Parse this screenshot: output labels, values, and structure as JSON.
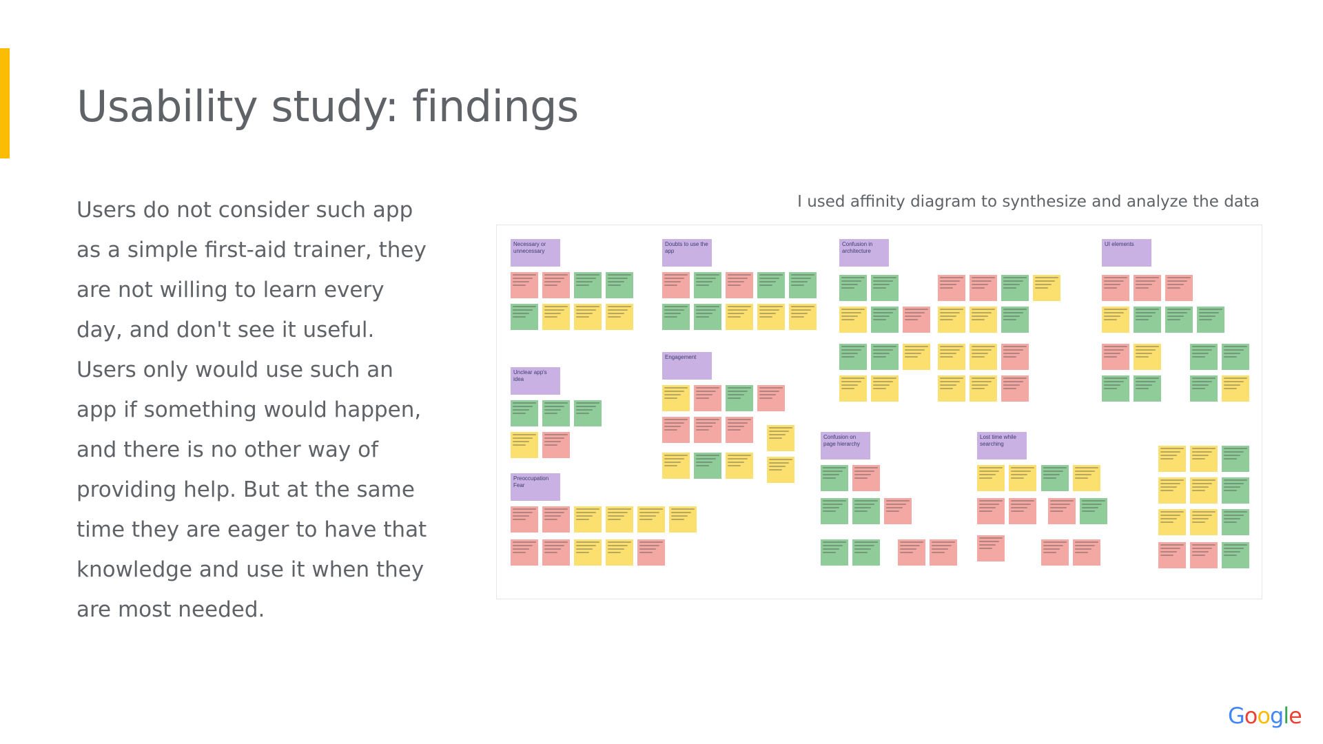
{
  "slide": {
    "title": "Usability study: findings",
    "body": "Users do not consider such app as a simple first-aid trainer, they are not willing to learn every day, and don't see it useful. Users only would use such an app if something would happen, and there is no other way of providing help. But at the same time they are eager to have that knowledge and use it when they are most needed.",
    "caption": "I used affinity diagram to synthesize and analyze the data"
  },
  "colors": {
    "accent": "#fbbc04",
    "text": "#5f6368",
    "header": "#c9b1e3",
    "red": "#f4a8a4",
    "green": "#8fcc99",
    "yellow": "#fbe070"
  },
  "affinity_board": {
    "label": "",
    "groups": [
      {
        "label": "Necessary or unnecessary"
      },
      {
        "label": "Doubts to use the app"
      },
      {
        "label": "Confusion in architecture"
      },
      {
        "label": "UI elements"
      },
      {
        "label": "Unclear app's idea"
      },
      {
        "label": "Engagement"
      },
      {
        "label": "Preoccupation Fear"
      },
      {
        "label": "Confusion on page hierarchy"
      },
      {
        "label": "Lost time while searching"
      }
    ]
  },
  "logo": {
    "letters": [
      "G",
      "o",
      "o",
      "g",
      "l",
      "e"
    ],
    "colors": [
      "#4285f4",
      "#ea4335",
      "#fbbc05",
      "#4285f4",
      "#34a853",
      "#ea4335"
    ]
  }
}
